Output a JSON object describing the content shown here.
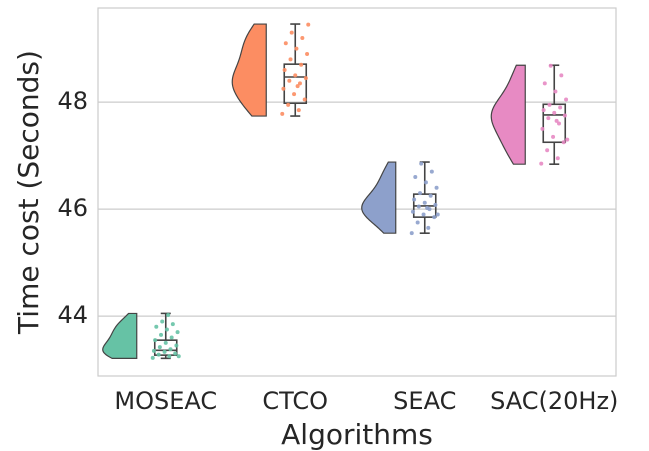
{
  "chart_data": {
    "type": "raincloud",
    "x_label": "Algorithms",
    "y_label": "Time cost (Seconds)",
    "categories": [
      "MOSEAC",
      "CTCO",
      "SEAC",
      "SAC(20Hz)"
    ],
    "groups": [
      {
        "color": "#66c2a5",
        "box": {
          "min": 43.21,
          "q1": 43.27,
          "median": 43.36,
          "q3": 43.55,
          "max": 44.05
        },
        "points": [
          43.22,
          43.25,
          43.28,
          43.3,
          43.33,
          43.35,
          43.38,
          43.42,
          43.45,
          43.5,
          43.55,
          43.6,
          43.65,
          43.7,
          43.75,
          43.8,
          43.85,
          43.9,
          43.25,
          44.02
        ]
      },
      {
        "color": "#fc8d62",
        "box": {
          "min": 47.74,
          "q1": 47.98,
          "median": 48.47,
          "q3": 48.71,
          "max": 49.46
        },
        "points": [
          47.78,
          47.85,
          47.95,
          48.05,
          48.15,
          48.25,
          48.35,
          48.4,
          48.45,
          48.5,
          48.6,
          48.7,
          48.8,
          48.9,
          49.0,
          49.1,
          49.2,
          49.3,
          49.45,
          48.3
        ]
      },
      {
        "color": "#8da0cb",
        "box": {
          "min": 45.55,
          "q1": 45.85,
          "median": 46.06,
          "q3": 46.28,
          "max": 46.88
        },
        "points": [
          45.55,
          45.65,
          45.75,
          45.85,
          45.9,
          45.95,
          46.0,
          46.05,
          46.08,
          46.12,
          46.18,
          46.25,
          46.3,
          46.4,
          46.5,
          46.6,
          46.7,
          46.85,
          45.9,
          46.02
        ]
      },
      {
        "color": "#e78ac3",
        "box": {
          "min": 46.84,
          "q1": 47.25,
          "median": 47.76,
          "q3": 47.96,
          "max": 48.69
        },
        "points": [
          46.85,
          46.95,
          47.1,
          47.25,
          47.35,
          47.5,
          47.6,
          47.7,
          47.75,
          47.8,
          47.85,
          47.9,
          47.95,
          48.05,
          48.2,
          48.35,
          48.5,
          48.68,
          47.3,
          47.65
        ]
      }
    ],
    "ylim": [
      42.88,
      49.76
    ],
    "yticks": [
      44,
      46,
      48
    ],
    "grid": true
  }
}
